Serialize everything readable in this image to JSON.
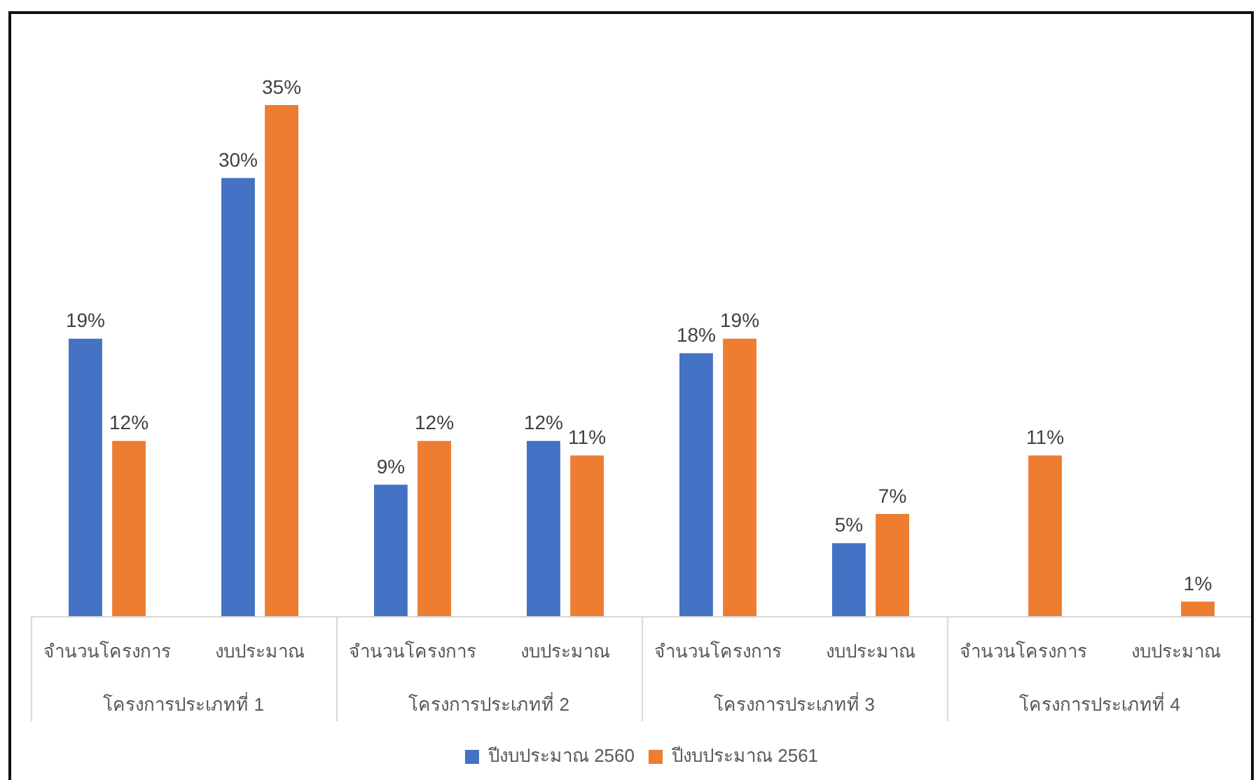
{
  "chart_data": {
    "type": "bar",
    "categories": [
      "จำนวนโครงการ",
      "งบประมาณ",
      "จำนวนโครงการ",
      "งบประมาณ",
      "จำนวนโครงการ",
      "งบประมาณ",
      "จำนวนโครงการ",
      "งบประมาณ"
    ],
    "annotations": [
      "โครงการประเภทที่ 1",
      "โครงการประเภทที่ 2",
      "โครงการประเภทที่ 3",
      "โครงการประเภทที่ 4"
    ],
    "series": [
      {
        "name": "ปีงบประมาณ 2560",
        "color": "#4472c4",
        "values": [
          19,
          30,
          9,
          12,
          18,
          5,
          null,
          null
        ],
        "value_labels": [
          "19%",
          "30%",
          "9%",
          "12%",
          "18%",
          "5%",
          null,
          null
        ]
      },
      {
        "name": "ปีงบประมาณ 2561",
        "color": "#ed7d31",
        "values": [
          12,
          35,
          12,
          11,
          19,
          7,
          11,
          1
        ],
        "value_labels": [
          "12%",
          "35%",
          "12%",
          "11%",
          "19%",
          "7%",
          "11%",
          "1%"
        ]
      }
    ],
    "tick_labels": "x",
    "legend": "bottom"
  }
}
